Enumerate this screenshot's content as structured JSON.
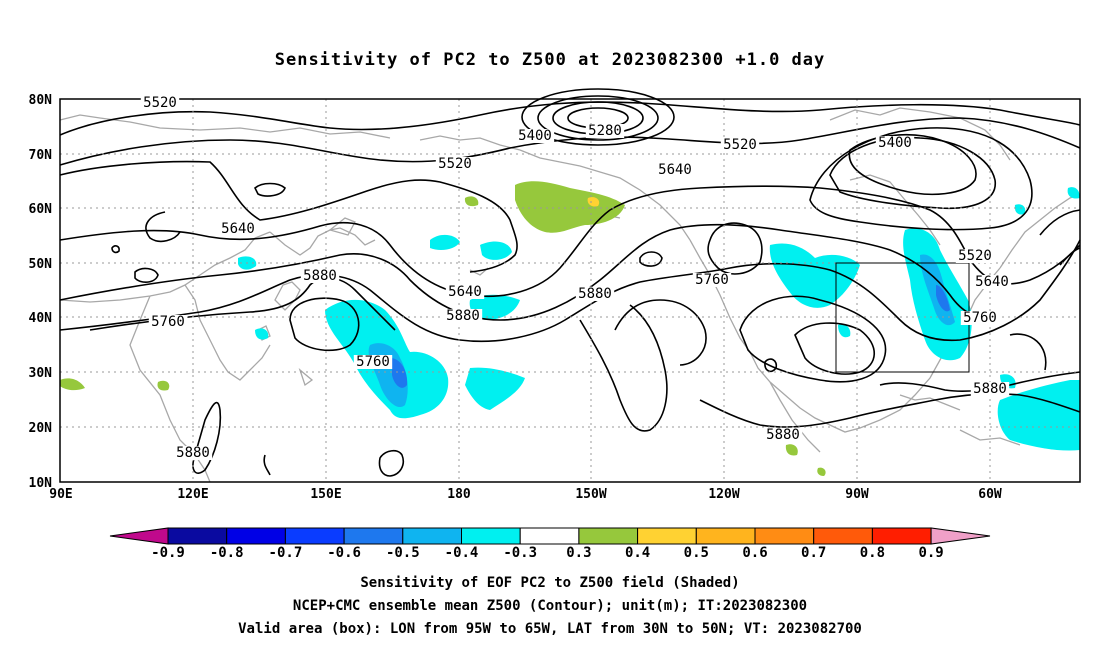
{
  "title": "Sensitivity of PC2 to Z500 at 2023082300 +1.0 day",
  "captions": {
    "line1": "Sensitivity of EOF PC2 to Z500 field (Shaded)",
    "line2": "NCEP+CMC ensemble mean Z500 (Contour); unit(m); IT:2023082300",
    "line3": "Valid area (box): LON from 95W to 65W, LAT from 30N to 50N; VT: 2023082700"
  },
  "map": {
    "lon_labels": [
      "90E",
      "120E",
      "150E",
      "180",
      "150W",
      "120W",
      "90W",
      "60W"
    ],
    "lat_labels": [
      "80N",
      "70N",
      "60N",
      "50N",
      "40N",
      "30N",
      "20N",
      "10N"
    ],
    "contour_labels": [
      "5520",
      "5400",
      "5280",
      "5520",
      "5400",
      "5520",
      "5640",
      "5640",
      "5880",
      "5640",
      "5760",
      "5880",
      "5760",
      "5760",
      "5880",
      "5520",
      "5640",
      "5760",
      "5880",
      "5880",
      "5880"
    ],
    "colorbar": {
      "labels": [
        "-0.9",
        "-0.8",
        "-0.7",
        "-0.6",
        "-0.5",
        "-0.4",
        "-0.3",
        "0.3",
        "0.4",
        "0.5",
        "0.6",
        "0.7",
        "0.8",
        "0.9"
      ],
      "colors": [
        "#0a0aa0",
        "#0000e6",
        "#0a3cff",
        "#1e78ee",
        "#0fb4f0",
        "#00f0f0",
        "#ffffff",
        "#96c83c",
        "#ffd232",
        "#ffb41e",
        "#ff8c14",
        "#ff5a0a",
        "#ff1e00"
      ],
      "low_arrow_color": "#c0098c",
      "high_arrow_color": "#f0a0c8"
    }
  }
}
